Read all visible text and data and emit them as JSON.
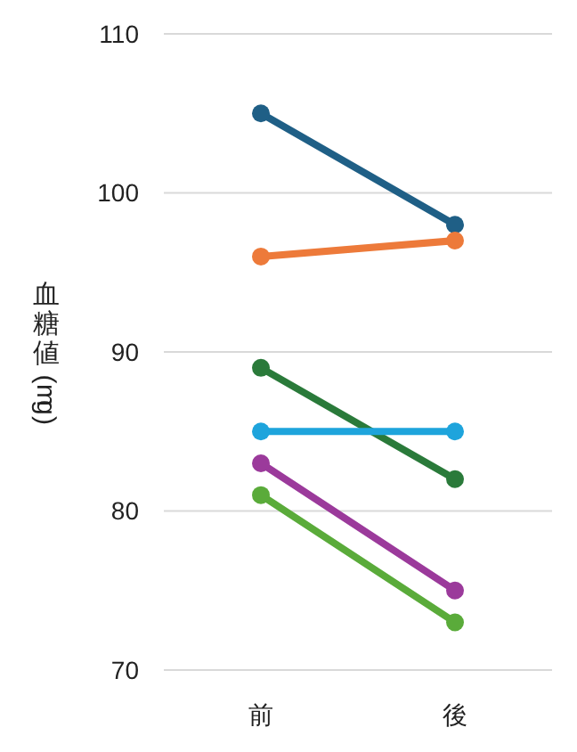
{
  "chart_data": {
    "type": "line",
    "ylabel": "血糖値 (mg)",
    "categories": [
      "前",
      "後"
    ],
    "series": [
      {
        "color": "#1f5f86",
        "values": [
          105,
          98
        ]
      },
      {
        "color": "#ed7a3a",
        "values": [
          96,
          97
        ]
      },
      {
        "color": "#2a7a3a",
        "values": [
          89,
          82
        ]
      },
      {
        "color": "#1ea4dc",
        "values": [
          85,
          85
        ]
      },
      {
        "color": "#9b3a9b",
        "values": [
          83,
          75
        ]
      },
      {
        "color": "#5aab3a",
        "values": [
          81,
          73
        ]
      }
    ],
    "ylim": [
      70,
      110
    ],
    "yticks": [
      70,
      80,
      90,
      100,
      110
    ],
    "grid": "y",
    "marker": "circle",
    "line_style": "solid"
  }
}
